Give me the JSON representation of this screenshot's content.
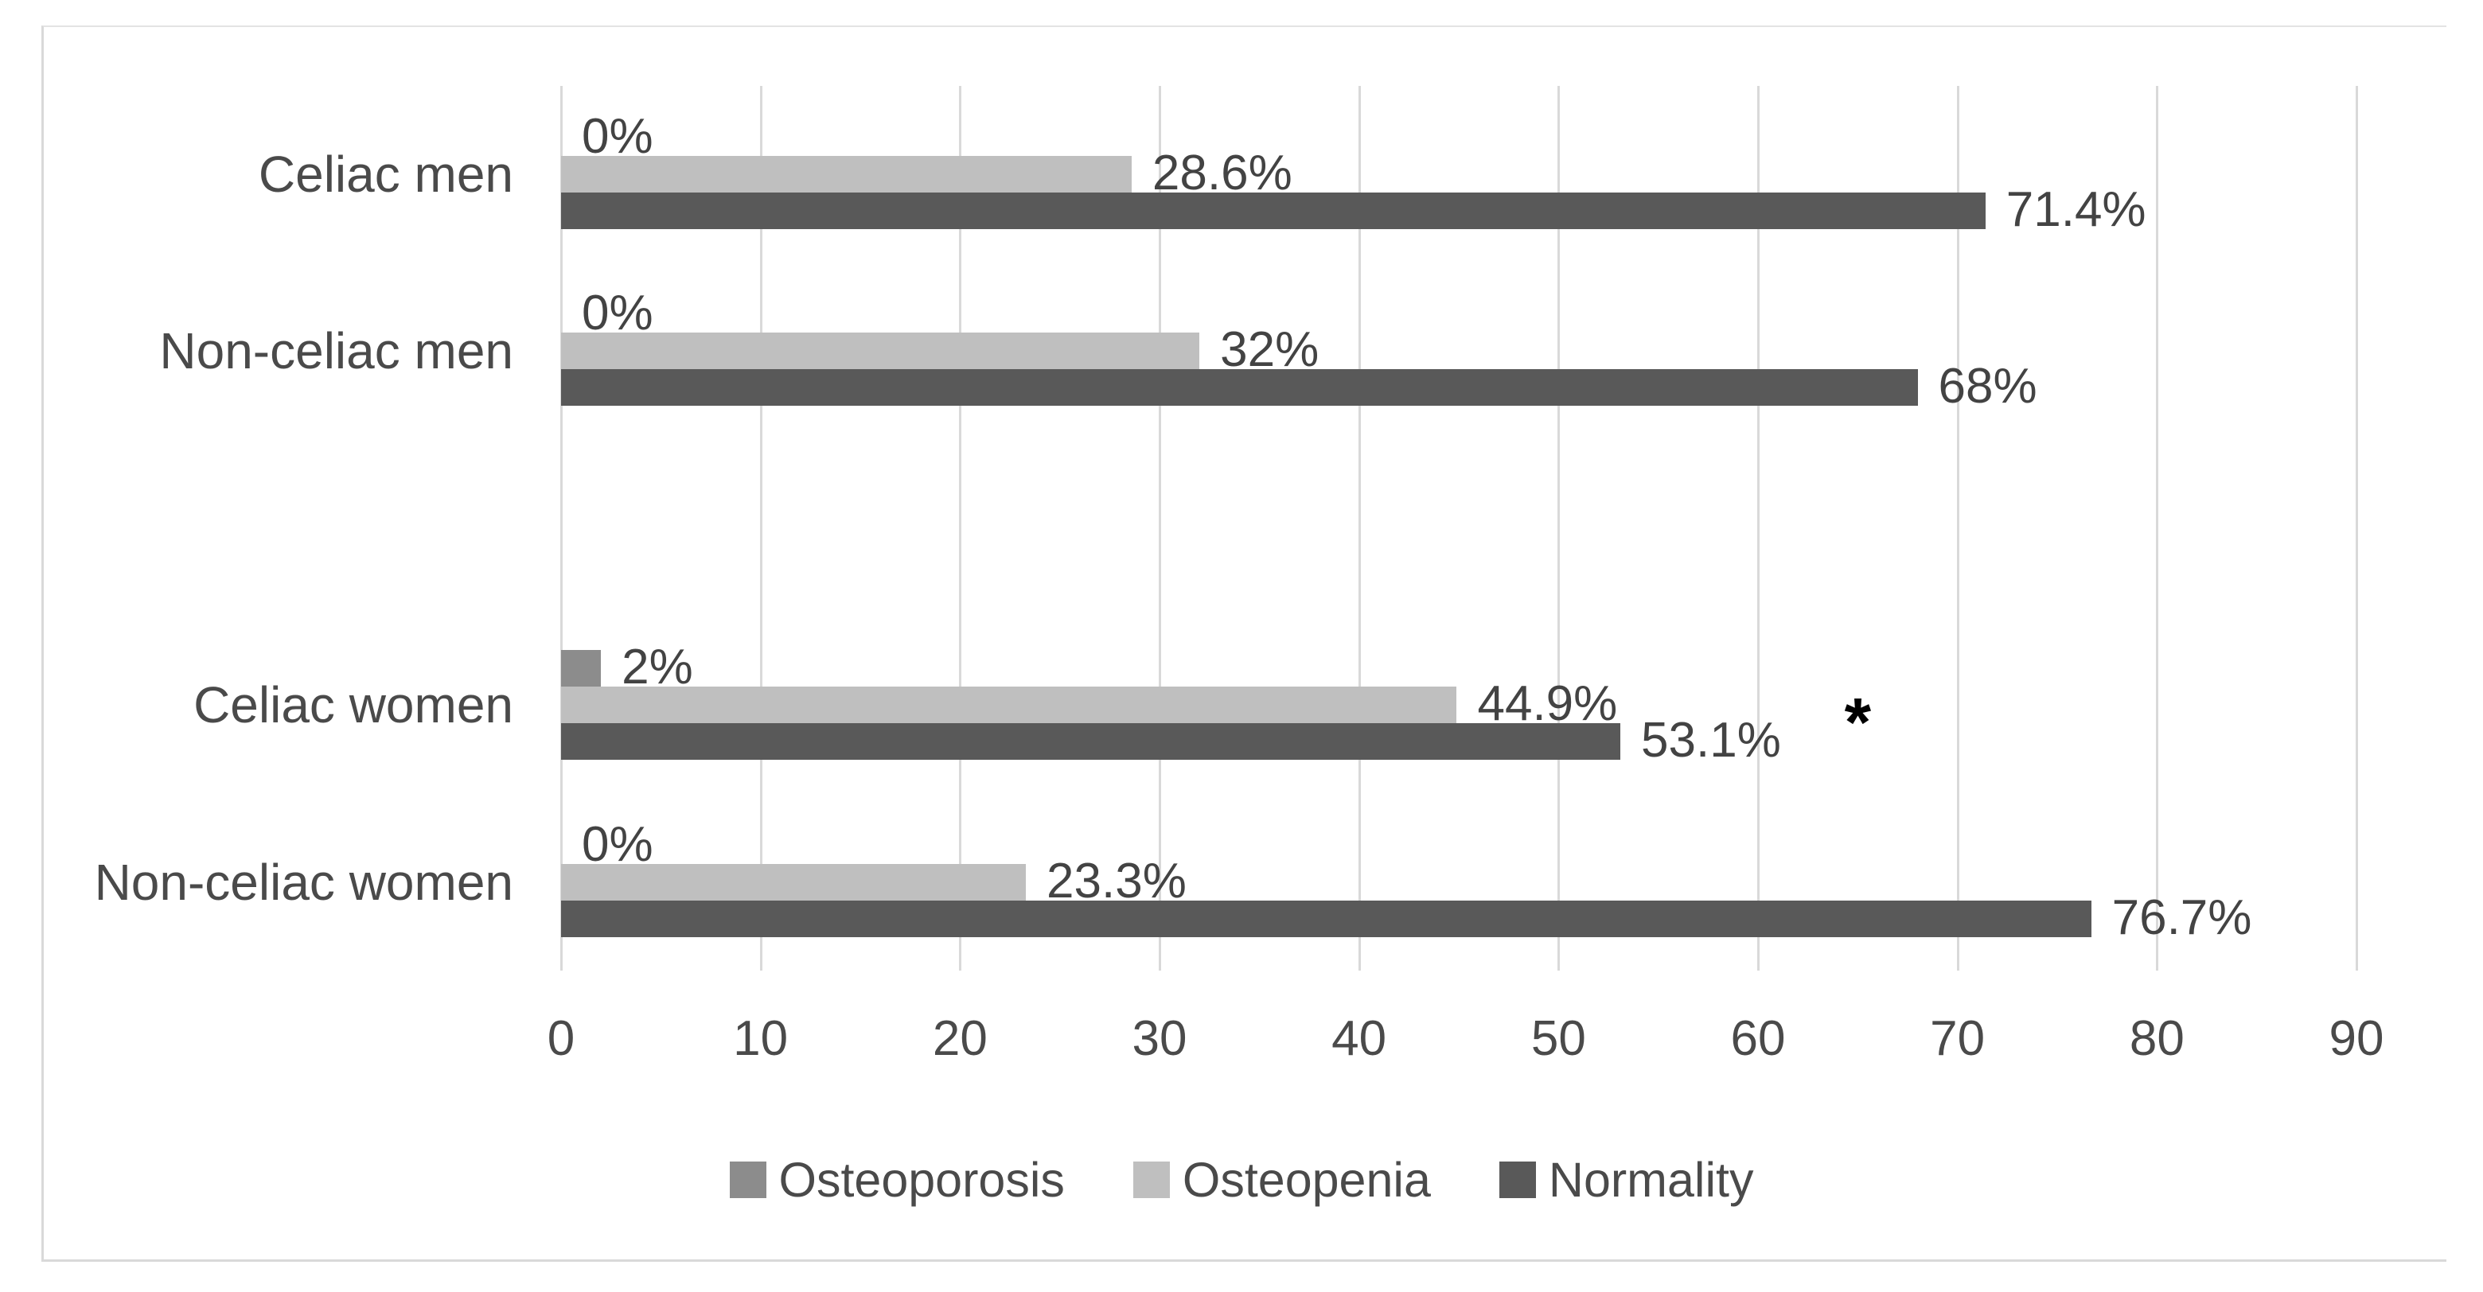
{
  "figure": {
    "background": "#ffffff",
    "frame_border_color": "#d9d9d9"
  },
  "chart_data": {
    "type": "bar",
    "orientation": "horizontal",
    "title": "",
    "xlabel": "",
    "ylabel": "",
    "categories": [
      "Celiac men",
      "Non-celiac men",
      "",
      "Celiac women",
      "Non-celiac women"
    ],
    "series": [
      {
        "name": "Osteoporosis",
        "color": "#8c8c8c",
        "values": [
          0,
          0,
          null,
          2,
          0
        ],
        "labels": [
          "0%",
          "0%",
          "",
          "2%",
          "0%"
        ]
      },
      {
        "name": "Osteopenia",
        "color": "#bfbfbf",
        "values": [
          28.6,
          32,
          null,
          44.9,
          23.3
        ],
        "labels": [
          "28.6%",
          "32%",
          "",
          "44.9%",
          "23.3%"
        ]
      },
      {
        "name": "Normality",
        "color": "#595959",
        "values": [
          71.4,
          68,
          null,
          53.1,
          76.7
        ],
        "labels": [
          "71.4%",
          "68%",
          "",
          "53.1%",
          "76.7%"
        ]
      }
    ],
    "xlim": [
      0,
      90
    ],
    "x_ticks": [
      "0",
      "10",
      "20",
      "30",
      "40",
      "50",
      "60",
      "70",
      "80",
      "90"
    ],
    "grid": true,
    "gridline_color": "#d9d9d9",
    "text_color": "#4a4a4a",
    "legend_position": "bottom",
    "annotation": {
      "text": "*",
      "category_index": 3,
      "series_index": 2,
      "x_value": 65
    }
  }
}
